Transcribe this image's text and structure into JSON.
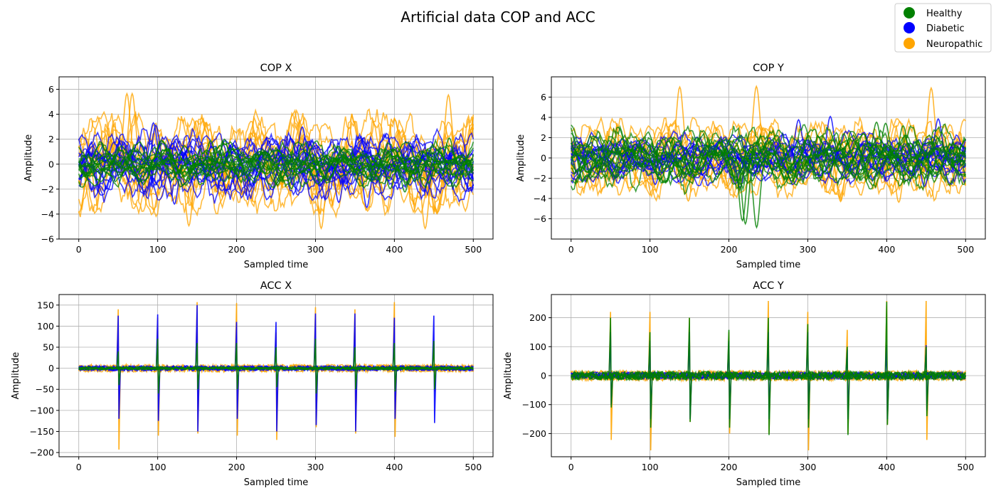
{
  "figure": {
    "title": "Artificial data COP and ACC"
  },
  "legend": {
    "position": "top-right",
    "entries": [
      {
        "label": "Healthy",
        "color": "#008000"
      },
      {
        "label": "Diabetic",
        "color": "#0000ff"
      },
      {
        "label": "Neuropathic",
        "color": "#ffa500"
      }
    ]
  },
  "chart_data": [
    {
      "type": "line",
      "title": "COP X",
      "xlabel": "Sampled time",
      "ylabel": "Amplitude",
      "xlim": [
        -25,
        525
      ],
      "ylim": [
        -6,
        7
      ],
      "xticks": [
        0,
        100,
        200,
        300,
        400,
        500
      ],
      "yticks": [
        -6,
        -4,
        -2,
        0,
        2,
        4,
        6
      ],
      "grid": true,
      "series": [
        {
          "name": "Neuropathic",
          "color": "#ffa500",
          "amplitude_range": [
            -5.3,
            6.3
          ],
          "kind": "noise"
        },
        {
          "name": "Diabetic",
          "color": "#0000ff",
          "amplitude_range": [
            -3.5,
            3.4
          ],
          "kind": "noise"
        },
        {
          "name": "Healthy",
          "color": "#008000",
          "amplitude_range": [
            -2.3,
            2.1
          ],
          "kind": "noise"
        }
      ]
    },
    {
      "type": "line",
      "title": "COP Y",
      "xlabel": "Sampled time",
      "ylabel": "Amplitude",
      "xlim": [
        -25,
        525
      ],
      "ylim": [
        -8,
        8
      ],
      "xticks": [
        0,
        100,
        200,
        300,
        400,
        500
      ],
      "yticks": [
        -6,
        -4,
        -2,
        0,
        2,
        4,
        6
      ],
      "grid": true,
      "series": [
        {
          "name": "Neuropathic",
          "color": "#ffa500",
          "amplitude_range": [
            -4.5,
            7.1
          ],
          "kind": "noise"
        },
        {
          "name": "Diabetic",
          "color": "#0000ff",
          "amplitude_range": [
            -3.0,
            4.2
          ],
          "kind": "noise"
        },
        {
          "name": "Healthy",
          "color": "#008000",
          "amplitude_range": [
            -7.2,
            3.6
          ],
          "kind": "noise"
        }
      ]
    },
    {
      "type": "line",
      "title": "ACC X",
      "xlabel": "Sampled time",
      "ylabel": "Amplitude",
      "xlim": [
        -25,
        525
      ],
      "ylim": [
        -210,
        175
      ],
      "xticks": [
        0,
        100,
        200,
        300,
        400,
        500
      ],
      "yticks": [
        -200,
        -150,
        -100,
        -50,
        0,
        50,
        100,
        150
      ],
      "grid": true,
      "spike_x": [
        50,
        100,
        150,
        200,
        250,
        300,
        350,
        400,
        450
      ],
      "series": [
        {
          "name": "Neuropathic",
          "color": "#ffa500",
          "noise_range": [
            -15,
            15
          ],
          "spike_max": [
            140,
            120,
            157,
            155,
            85,
            145,
            140,
            157,
            60
          ],
          "spike_min": [
            -193,
            -160,
            -155,
            -160,
            -170,
            -140,
            -155,
            -163,
            -55
          ]
        },
        {
          "name": "Diabetic",
          "color": "#0000ff",
          "noise_range": [
            -10,
            10
          ],
          "spike_max": [
            125,
            128,
            150,
            110,
            110,
            130,
            130,
            120,
            125
          ],
          "spike_min": [
            -120,
            -125,
            -150,
            -120,
            -150,
            -135,
            -150,
            -120,
            -130
          ]
        },
        {
          "name": "Healthy",
          "color": "#008000",
          "noise_range": [
            -6,
            6
          ],
          "spike_max": [
            40,
            70,
            60,
            60,
            50,
            70,
            50,
            60,
            65
          ],
          "spike_min": [
            -40,
            -60,
            -50,
            -50,
            -45,
            -60,
            -50,
            -55,
            -50
          ]
        }
      ]
    },
    {
      "type": "line",
      "title": "ACC Y",
      "xlabel": "Sampled time",
      "ylabel": "Amplitude",
      "xlim": [
        -25,
        525
      ],
      "ylim": [
        -280,
        280
      ],
      "xticks": [
        0,
        100,
        200,
        300,
        400,
        500
      ],
      "yticks": [
        -200,
        -100,
        0,
        100,
        200
      ],
      "grid": true,
      "spike_x": [
        50,
        100,
        150,
        200,
        250,
        300,
        350,
        400,
        450
      ],
      "series": [
        {
          "name": "Neuropathic",
          "color": "#ffa500",
          "noise_range": [
            -30,
            30
          ],
          "spike_max": [
            220,
            220,
            200,
            150,
            258,
            220,
            158,
            258,
            258
          ],
          "spike_min": [
            -222,
            -258,
            -160,
            -200,
            -200,
            -258,
            -200,
            -170,
            -222
          ]
        },
        {
          "name": "Diabetic",
          "color": "#0000ff",
          "noise_range": [
            -20,
            20
          ],
          "spike_max": [
            150,
            120,
            150,
            120,
            150,
            150,
            90,
            105,
            105
          ],
          "spike_min": [
            -100,
            -150,
            -150,
            -150,
            -150,
            -150,
            -150,
            -150,
            -120
          ]
        },
        {
          "name": "Healthy",
          "color": "#008000",
          "noise_range": [
            -25,
            25
          ],
          "spike_max": [
            200,
            150,
            200,
            158,
            200,
            178,
            100,
            255,
            100
          ],
          "spike_min": [
            -110,
            -180,
            -160,
            -180,
            -205,
            -180,
            -205,
            -170,
            -140
          ]
        }
      ]
    }
  ]
}
